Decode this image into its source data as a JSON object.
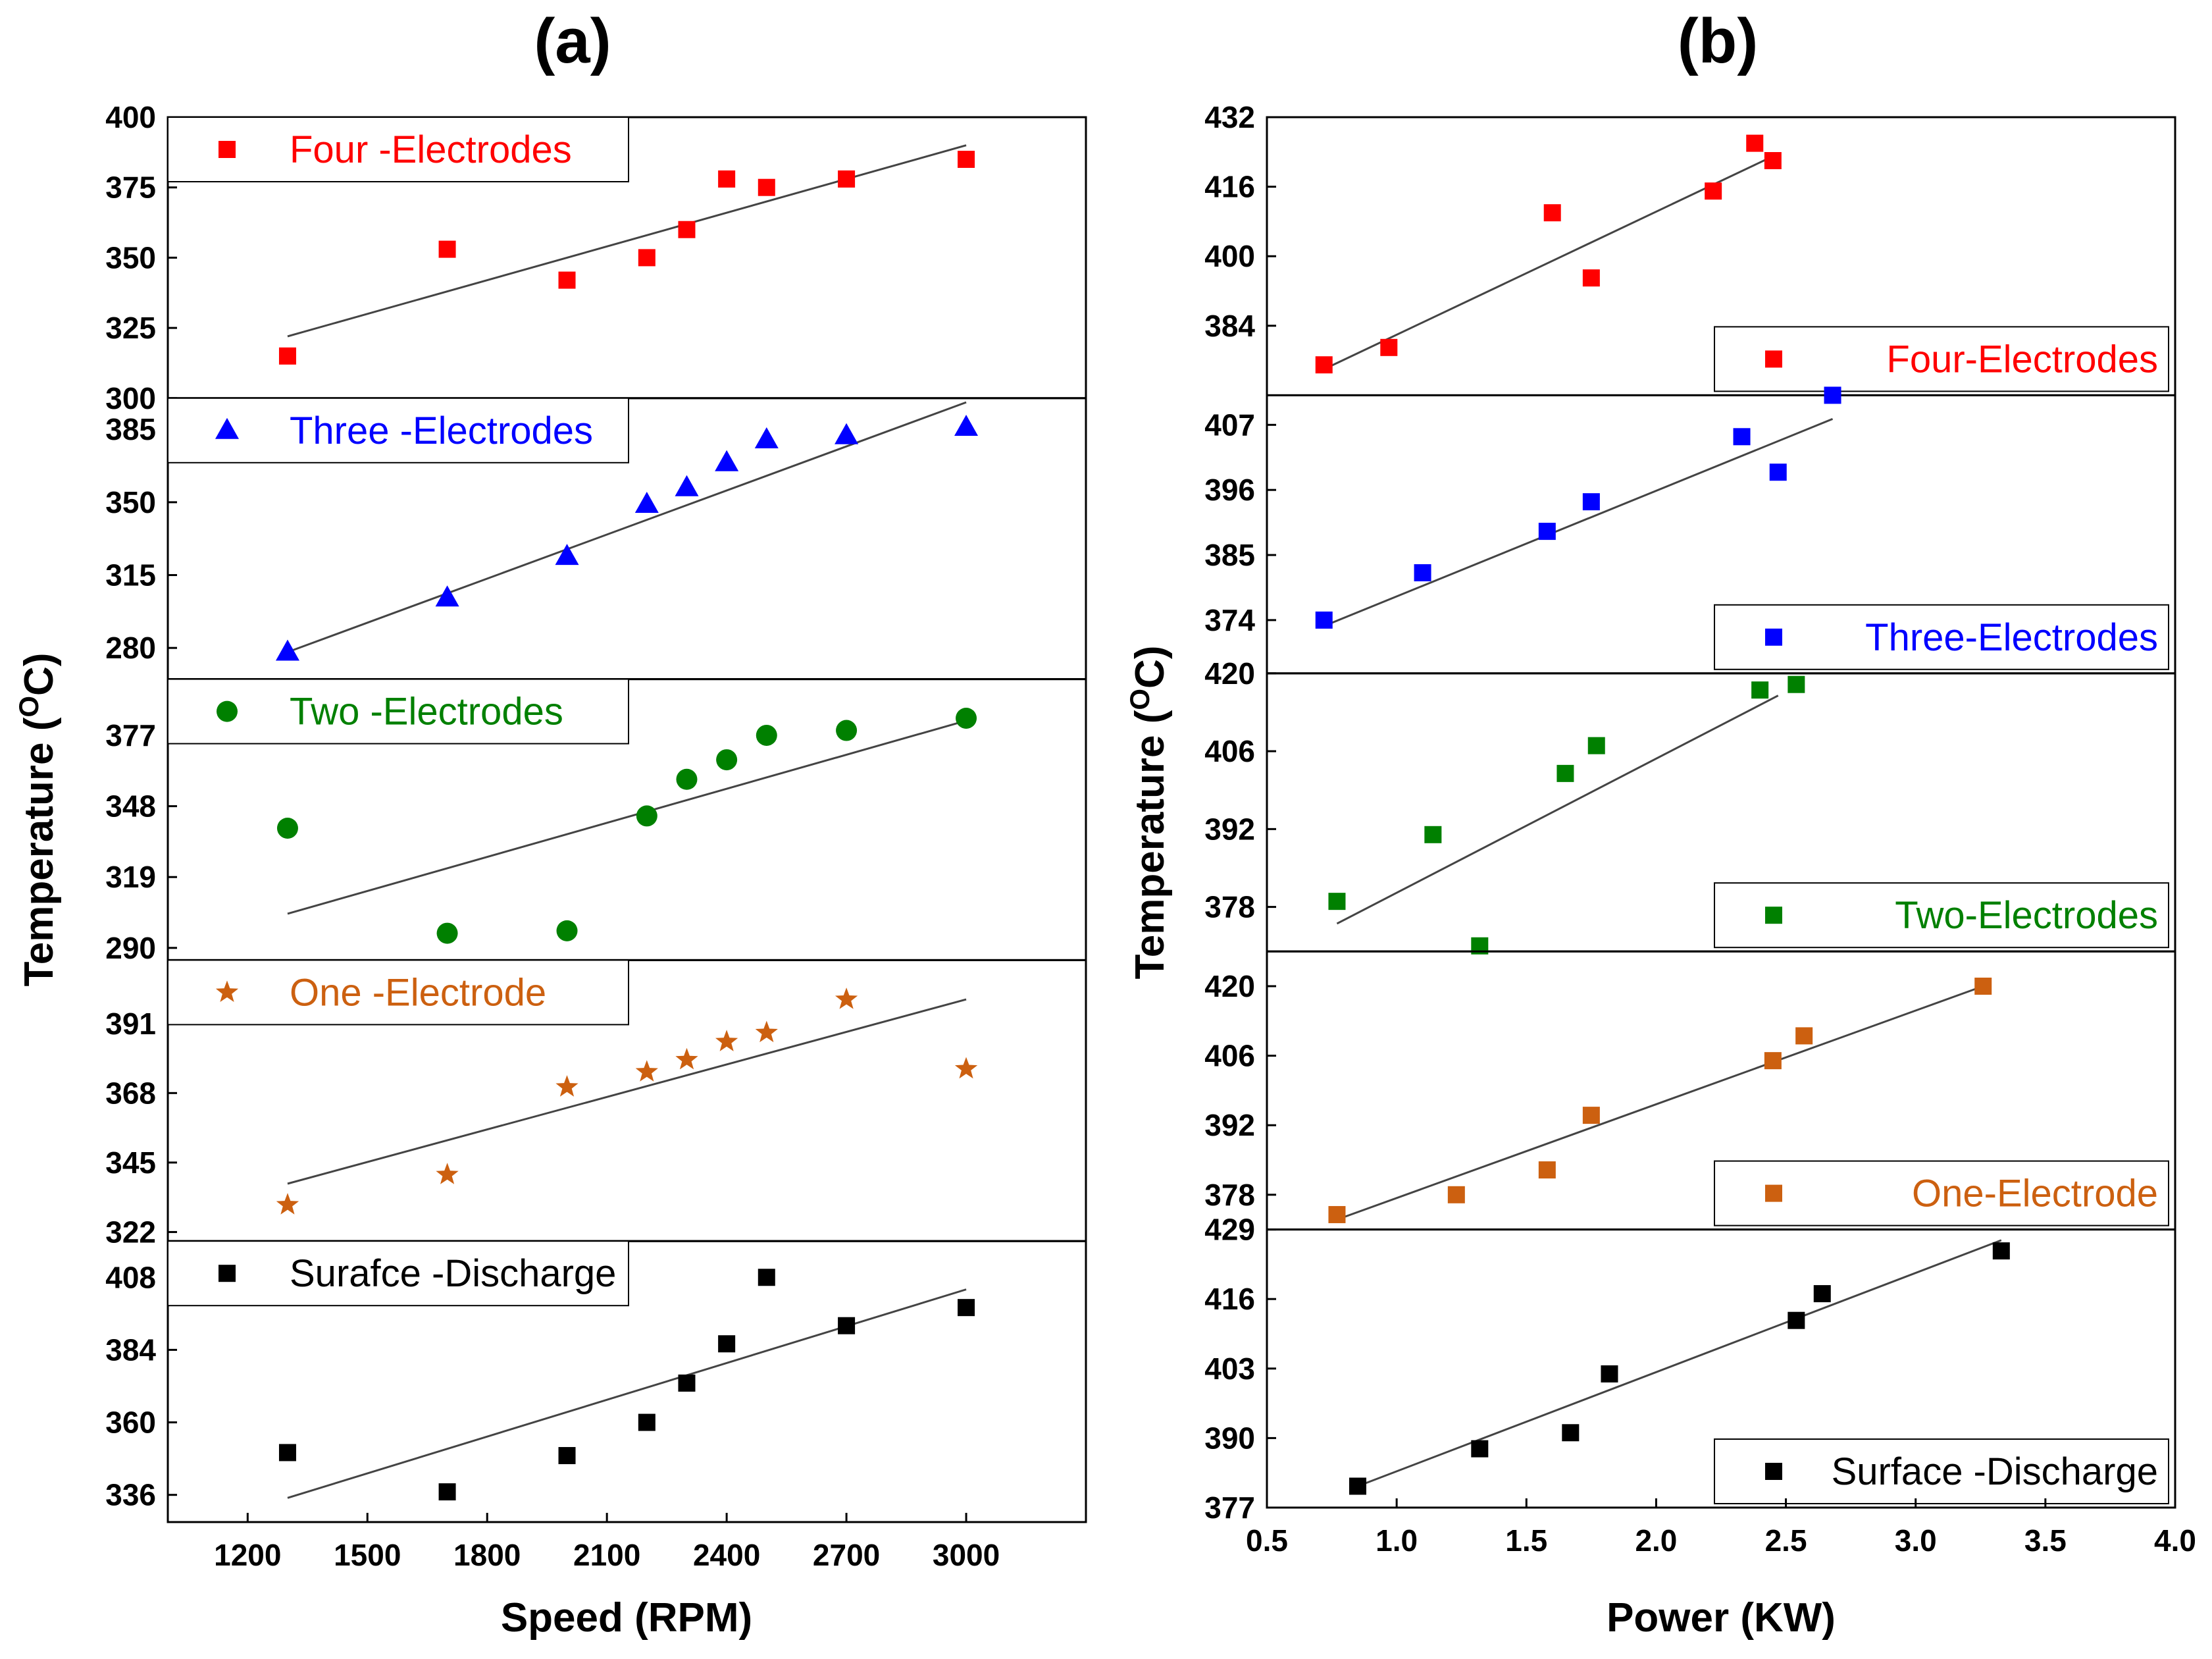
{
  "chart_data": [
    {
      "type": "scatter",
      "panel": "(a)",
      "xlabel": "Speed (RPM)",
      "ylabel": "Temperature (",
      "ylabel_sup": "O",
      "ylabel_tail": "C)",
      "xlim": [
        1000,
        3300
      ],
      "xticks": [
        1200,
        1500,
        1800,
        2100,
        2400,
        2700,
        3000
      ],
      "xtick_labels": [
        "1200",
        "1500",
        "1800",
        "2100",
        "2400",
        "2700",
        "3000"
      ],
      "subplots": [
        {
          "name": "Four -Electrodes",
          "color": "#ff0000",
          "marker": "square",
          "ylim": [
            300,
            400
          ],
          "yticks": [
            300,
            325,
            350,
            375,
            400
          ],
          "ytick_labels": [
            "300",
            "325",
            "350",
            "375",
            "400"
          ],
          "x": [
            1300,
            1700,
            2000,
            2200,
            2300,
            2400,
            2500,
            2700,
            3000
          ],
          "y": [
            315,
            353,
            342,
            350,
            360,
            378,
            375,
            378,
            385
          ],
          "fit": [
            [
              1300,
              322
            ],
            [
              3000,
              390
            ]
          ],
          "legend_pos": "top-left"
        },
        {
          "name": "Three -Electrodes",
          "color": "#0000ff",
          "marker": "triangle",
          "ylim": [
            265,
            400
          ],
          "yticks": [
            280,
            315,
            350,
            385
          ],
          "ytick_labels": [
            "280",
            "315",
            "350",
            "385"
          ],
          "x": [
            1300,
            1700,
            2000,
            2200,
            2300,
            2400,
            2500,
            2700,
            3000
          ],
          "y": [
            278,
            304,
            324,
            349,
            357,
            369,
            380,
            382,
            386
          ],
          "fit": [
            [
              1300,
              278
            ],
            [
              3000,
              398
            ]
          ],
          "legend_pos": "top-left"
        },
        {
          "name": "Two -Electrodes",
          "color": "#008000",
          "marker": "circle",
          "ylim": [
            285,
            400
          ],
          "yticks": [
            290,
            319,
            348,
            377
          ],
          "ytick_labels": [
            "290",
            "319",
            "348",
            "377"
          ],
          "x": [
            1300,
            1700,
            2000,
            2200,
            2300,
            2400,
            2500,
            2700,
            3000
          ],
          "y": [
            339,
            296,
            297,
            344,
            359,
            367,
            377,
            379,
            384
          ],
          "fit": [
            [
              1300,
              304
            ],
            [
              3000,
              383
            ]
          ],
          "legend_pos": "top-left"
        },
        {
          "name": "One -Electrode",
          "color": "#cc6010",
          "marker": "star",
          "ylim": [
            319,
            412
          ],
          "yticks": [
            322,
            345,
            368,
            391
          ],
          "ytick_labels": [
            "322",
            "345",
            "368",
            "391"
          ],
          "x": [
            1300,
            1700,
            2000,
            2200,
            2300,
            2400,
            2500,
            2700,
            3000
          ],
          "y": [
            331,
            341,
            370,
            375,
            379,
            385,
            388,
            399,
            376
          ],
          "fit": [
            [
              1300,
              338
            ],
            [
              3000,
              399
            ]
          ],
          "legend_pos": "top-left"
        },
        {
          "name": "Surafce -Discharge",
          "color": "#000000",
          "marker": "square",
          "ylim": [
            327,
            420
          ],
          "yticks": [
            336,
            360,
            384,
            408
          ],
          "ytick_labels": [
            "336",
            "360",
            "384",
            "408"
          ],
          "x": [
            1300,
            1700,
            2000,
            2200,
            2300,
            2400,
            2500,
            2700,
            3000
          ],
          "y": [
            350,
            337,
            349,
            360,
            373,
            386,
            408,
            392,
            398
          ],
          "fit": [
            [
              1300,
              335
            ],
            [
              3000,
              404
            ]
          ],
          "legend_pos": "top-left"
        }
      ]
    },
    {
      "type": "scatter",
      "panel": "(b)",
      "xlabel": "Power (KW)",
      "ylabel": "Temperature (",
      "ylabel_sup": "O",
      "ylabel_tail": "C)",
      "xlim": [
        0.5,
        4.0
      ],
      "xticks": [
        0.5,
        1.0,
        1.5,
        2.0,
        2.5,
        3.0,
        3.5,
        4.0
      ],
      "xtick_labels": [
        "0.5",
        "1.0",
        "1.5",
        "2.0",
        "2.5",
        "3.0",
        "3.5",
        "4.0"
      ],
      "subplots": [
        {
          "name": "Four-Electrodes",
          "color": "#ff0000",
          "marker": "square",
          "ylim": [
            368,
            432
          ],
          "yticks": [
            384,
            400,
            416,
            432
          ],
          "ytick_labels": [
            "384",
            "400",
            "416",
            "432"
          ],
          "x": [
            0.72,
            0.97,
            1.6,
            1.75,
            2.22,
            2.38,
            2.45
          ],
          "y": [
            375,
            379,
            410,
            395,
            415,
            426,
            422
          ],
          "fit": [
            [
              0.72,
              374
            ],
            [
              2.45,
              423
            ]
          ],
          "legend_pos": "bottom-right"
        },
        {
          "name": "Three-Electrodes",
          "color": "#0000ff",
          "marker": "square",
          "ylim": [
            365,
            412
          ],
          "yticks": [
            374,
            385,
            396,
            407
          ],
          "ytick_labels": [
            "374",
            "385",
            "396",
            "407"
          ],
          "x": [
            0.72,
            1.1,
            1.58,
            1.75,
            2.33,
            2.47,
            2.68
          ],
          "y": [
            374,
            382,
            389,
            394,
            405,
            399,
            412
          ],
          "fit": [
            [
              0.72,
              373
            ],
            [
              2.68,
              408
            ]
          ],
          "legend_pos": "bottom-right"
        },
        {
          "name": "Two-Electrodes",
          "color": "#008000",
          "marker": "square",
          "ylim": [
            370,
            420
          ],
          "yticks": [
            378,
            392,
            406,
            420
          ],
          "ytick_labels": [
            "378",
            "392",
            "406",
            "420"
          ],
          "x": [
            0.77,
            1.14,
            1.32,
            1.65,
            1.77,
            2.4,
            2.54
          ],
          "y": [
            379,
            391,
            371,
            402,
            407,
            417,
            418
          ],
          "fit": [
            [
              0.77,
              375
            ],
            [
              2.47,
              416
            ]
          ],
          "legend_pos": "bottom-right"
        },
        {
          "name": "One-Electrode",
          "color": "#cc6010",
          "marker": "square",
          "ylim": [
            371,
            427
          ],
          "yticks": [
            378,
            392,
            406,
            420
          ],
          "ytick_labels": [
            "378",
            "392",
            "406",
            "420"
          ],
          "x": [
            0.77,
            1.23,
            1.58,
            1.75,
            2.45,
            2.57,
            3.26
          ],
          "y": [
            374,
            378,
            383,
            394,
            405,
            410,
            420
          ],
          "fit": [
            [
              0.77,
              373
            ],
            [
              3.26,
              420
            ]
          ],
          "legend_pos": "bottom-right"
        },
        {
          "name": "Surface -Discharge",
          "color": "#000000",
          "marker": "square",
          "ylim": [
            377,
            429
          ],
          "yticks": [
            377,
            390,
            403,
            416,
            429
          ],
          "ytick_labels": [
            "377",
            "390",
            "403",
            "416",
            "429"
          ],
          "x": [
            0.85,
            1.32,
            1.67,
            1.82,
            2.54,
            2.64,
            3.33
          ],
          "y": [
            381,
            388,
            391,
            402,
            412,
            417,
            425
          ],
          "fit": [
            [
              0.85,
              381
            ],
            [
              3.33,
              427
            ]
          ],
          "legend_pos": "bottom-right"
        }
      ]
    }
  ]
}
